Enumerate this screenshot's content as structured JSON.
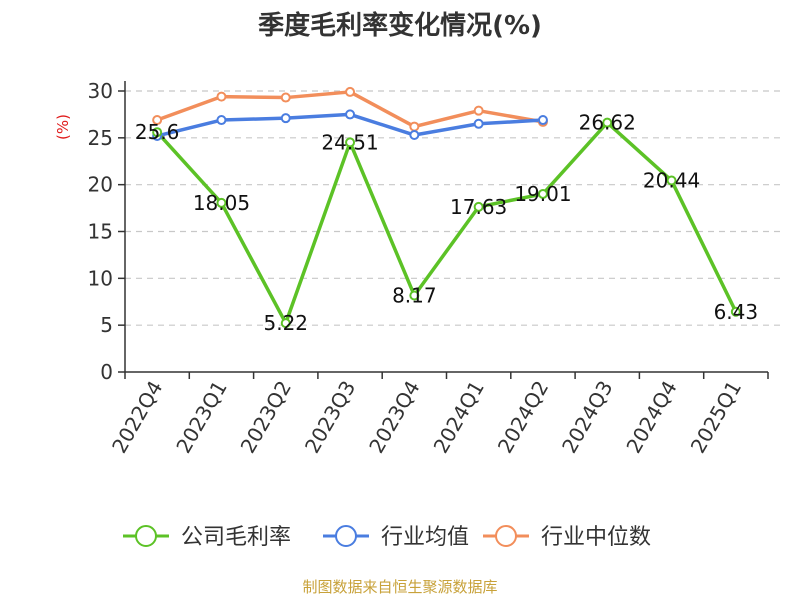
{
  "chart_data": {
    "type": "line",
    "title": "季度毛利率变化情况(%)",
    "ylabel": "(%)",
    "xlabel": "",
    "ylim": [
      0,
      30
    ],
    "yticks": [
      0,
      5,
      10,
      15,
      20,
      25,
      30
    ],
    "grid": true,
    "legend_position": "bottom",
    "categories": [
      "2022Q4",
      "2023Q1",
      "2023Q2",
      "2023Q3",
      "2023Q4",
      "2024Q1",
      "2024Q2",
      "2024Q3",
      "2024Q4",
      "2025Q1"
    ],
    "series": [
      {
        "name": "公司毛利率",
        "color": "#5cc226",
        "values": [
          25.6,
          18.05,
          5.22,
          24.51,
          8.17,
          17.63,
          19.01,
          26.62,
          20.44,
          6.43
        ],
        "labels": [
          "25.6",
          "18.05",
          "5.22",
          "24.51",
          "8.17",
          "17.63",
          "19.01",
          "26.62",
          "20.44",
          "6.43"
        ]
      },
      {
        "name": "行业均值",
        "color": "#4a7de0",
        "values": [
          25.2,
          26.9,
          27.1,
          27.5,
          25.3,
          26.5,
          26.9,
          null,
          null,
          null
        ]
      },
      {
        "name": "行业中位数",
        "color": "#f28e5b",
        "values": [
          26.9,
          29.4,
          29.3,
          29.9,
          26.2,
          27.9,
          26.7,
          null,
          null,
          null
        ]
      }
    ],
    "source": "制图数据来自恒生聚源数据库"
  }
}
